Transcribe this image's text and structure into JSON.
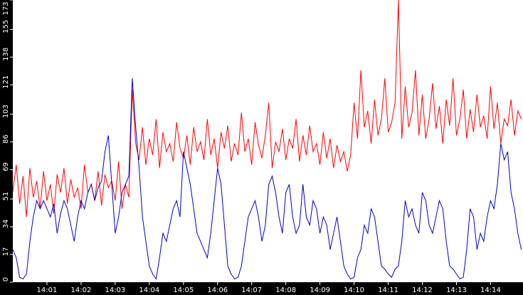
{
  "chart_data": {
    "type": "line",
    "x": [
      0,
      0.1,
      0.2,
      0.3,
      0.4,
      0.5,
      0.6,
      0.7,
      0.8,
      0.9,
      1,
      1.1,
      1.2,
      1.3,
      1.4,
      1.5,
      1.6,
      1.7,
      1.8,
      1.9,
      2,
      2.1,
      2.2,
      2.3,
      2.4,
      2.5,
      2.6,
      2.7,
      2.8,
      2.9,
      3,
      3.1,
      3.2,
      3.3,
      3.4,
      3.5,
      3.6,
      3.7,
      3.8,
      3.9,
      4,
      4.1,
      4.2,
      4.3,
      4.4,
      4.5,
      4.6,
      4.7,
      4.8,
      4.9,
      5,
      5.1,
      5.2,
      5.3,
      5.4,
      5.5,
      5.6,
      5.7,
      5.8,
      5.9,
      6,
      6.1,
      6.2,
      6.3,
      6.4,
      6.5,
      6.6,
      6.7,
      6.8,
      6.9,
      7,
      7.1,
      7.2,
      7.3,
      7.4,
      7.5,
      7.6,
      7.7,
      7.8,
      7.9,
      8,
      8.1,
      8.2,
      8.3,
      8.4,
      8.5,
      8.6,
      8.7,
      8.8,
      8.9,
      9,
      9.1,
      9.2,
      9.3,
      9.4,
      9.5,
      9.6,
      9.7,
      9.8,
      9.9,
      10,
      10.1,
      10.2,
      10.3,
      10.4,
      10.5,
      10.6,
      10.7,
      10.8,
      10.9,
      11,
      11.1,
      11.2,
      11.3,
      11.4,
      11.5,
      11.6,
      11.7,
      11.8,
      11.9,
      12,
      12.1,
      12.2,
      12.3,
      12.4,
      12.5,
      12.6,
      12.7,
      12.8,
      12.9,
      13,
      13.1,
      13.2,
      13.3,
      13.4,
      13.5,
      13.6,
      13.7,
      13.8,
      13.9,
      14,
      14.1,
      14.2,
      14.3,
      14.4,
      14.5,
      14.6,
      14.7,
      14.8,
      14.9
    ],
    "series": [
      {
        "color": "#ff0000",
        "values": [
          55,
          72,
          48,
          65,
          40,
          70,
          52,
          62,
          45,
          68,
          50,
          60,
          42,
          66,
          55,
          70,
          48,
          63,
          52,
          58,
          45,
          72,
          55,
          60,
          50,
          68,
          47,
          66,
          58,
          62,
          50,
          74,
          45,
          60,
          52,
          118,
          85,
          75,
          95,
          72,
          88,
          78,
          100,
          70,
          92,
          80,
          85,
          74,
          98,
          82,
          76,
          90,
          72,
          95,
          80,
          86,
          75,
          100,
          78,
          88,
          70,
          92,
          82,
          96,
          74,
          85,
          78,
          104,
          80,
          88,
          72,
          98,
          84,
          76,
          90,
          110,
          70,
          86,
          80,
          94,
          75,
          88,
          82,
          100,
          74,
          90,
          78,
          96,
          80,
          85,
          72,
          92,
          76,
          88,
          70,
          84,
          74,
          80,
          68,
          78,
          110,
          88,
          130,
          95,
          105,
          85,
          112,
          90,
          100,
          125,
          92,
          98,
          110,
          173,
          88,
          120,
          95,
          104,
          130,
          90,
          115,
          88,
          100,
          122,
          94,
          108,
          85,
          112,
          96,
          125,
          90,
          100,
          118,
          88,
          106,
          92,
          115,
          95,
          102,
          88,
          120,
          94,
          110,
          85,
          100,
          96,
          112,
          90,
          105,
          100
        ]
      },
      {
        "color": "#0000cc",
        "values": [
          20,
          15,
          3,
          2,
          5,
          25,
          40,
          50,
          45,
          50,
          45,
          40,
          48,
          30,
          42,
          50,
          45,
          35,
          25,
          40,
          50,
          45,
          55,
          60,
          50,
          58,
          62,
          80,
          90,
          60,
          30,
          40,
          55,
          60,
          65,
          125,
          95,
          70,
          40,
          25,
          10,
          5,
          2,
          15,
          30,
          25,
          35,
          45,
          50,
          40,
          80,
          70,
          60,
          45,
          30,
          25,
          20,
          15,
          30,
          50,
          70,
          60,
          35,
          10,
          5,
          2,
          3,
          10,
          25,
          40,
          45,
          50,
          40,
          25,
          35,
          60,
          65,
          55,
          40,
          30,
          55,
          60,
          40,
          30,
          35,
          60,
          40,
          35,
          50,
          45,
          30,
          40,
          35,
          20,
          30,
          40,
          25,
          10,
          5,
          2,
          3,
          15,
          20,
          35,
          30,
          45,
          40,
          25,
          10,
          8,
          5,
          3,
          8,
          10,
          25,
          50,
          40,
          45,
          35,
          30,
          55,
          50,
          35,
          30,
          40,
          50,
          45,
          25,
          10,
          8,
          5,
          2,
          3,
          20,
          45,
          40,
          20,
          30,
          25,
          40,
          50,
          45,
          60,
          85,
          75,
          80,
          55,
          45,
          30,
          20
        ]
      }
    ],
    "xlim": [
      0,
      14.95
    ],
    "xticks": [
      {
        "value": 1,
        "label": "14:01"
      },
      {
        "value": 2,
        "label": "14:02"
      },
      {
        "value": 3,
        "label": "14:03"
      },
      {
        "value": 4,
        "label": "14:04"
      },
      {
        "value": 5,
        "label": "14:05"
      },
      {
        "value": 6,
        "label": "14:06"
      },
      {
        "value": 7,
        "label": "14:07"
      },
      {
        "value": 8,
        "label": "14:08"
      },
      {
        "value": 9,
        "label": "14:09"
      },
      {
        "value": 10,
        "label": "14:10"
      },
      {
        "value": 11,
        "label": "14:11"
      },
      {
        "value": 12,
        "label": "14:12"
      },
      {
        "value": 13,
        "label": "14:13"
      },
      {
        "value": 14,
        "label": "14:14"
      }
    ],
    "ylim": [
      0,
      173
    ],
    "yticks": [
      0,
      17,
      34,
      51,
      69,
      86,
      103,
      121,
      138,
      155,
      173
    ]
  }
}
